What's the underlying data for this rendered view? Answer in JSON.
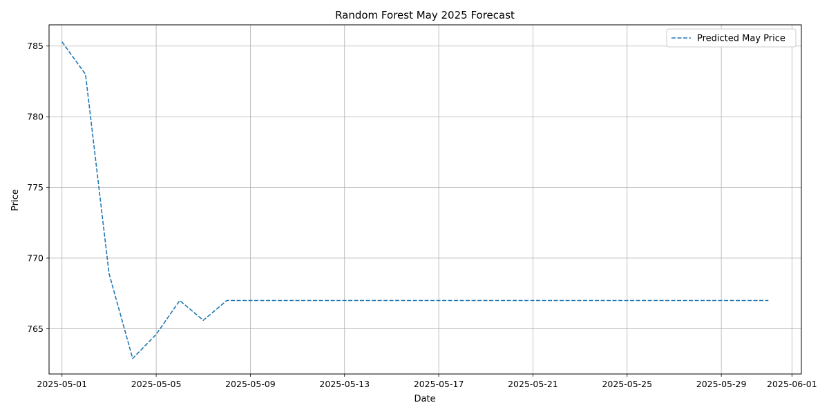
{
  "chart_data": {
    "type": "line",
    "title": "Random Forest May 2025 Forecast",
    "xlabel": "Date",
    "ylabel": "Price",
    "xlim": [
      "2025-04-30",
      "2025-06-01"
    ],
    "ylim": [
      761.8,
      786.5
    ],
    "x_ticks": [
      "2025-05-01",
      "2025-05-05",
      "2025-05-09",
      "2025-05-13",
      "2025-05-17",
      "2025-05-21",
      "2025-05-25",
      "2025-05-29",
      "2025-06-01"
    ],
    "y_ticks": [
      765,
      770,
      775,
      780,
      785
    ],
    "grid": true,
    "legend_position": "top-right",
    "series": [
      {
        "name": "Predicted May Price",
        "color": "#1f77b4",
        "line_style": "dashed",
        "x": [
          "2025-05-01",
          "2025-05-02",
          "2025-05-03",
          "2025-05-04",
          "2025-05-05",
          "2025-05-06",
          "2025-05-07",
          "2025-05-08",
          "2025-05-09",
          "2025-05-10",
          "2025-05-11",
          "2025-05-12",
          "2025-05-13",
          "2025-05-14",
          "2025-05-15",
          "2025-05-16",
          "2025-05-17",
          "2025-05-18",
          "2025-05-19",
          "2025-05-20",
          "2025-05-21",
          "2025-05-22",
          "2025-05-23",
          "2025-05-24",
          "2025-05-25",
          "2025-05-26",
          "2025-05-27",
          "2025-05-28",
          "2025-05-29",
          "2025-05-30",
          "2025-05-31"
        ],
        "y": [
          785.3,
          783.0,
          768.9,
          762.9,
          764.6,
          767.0,
          765.6,
          767.0,
          767.0,
          767.0,
          767.0,
          767.0,
          767.0,
          767.0,
          767.0,
          767.0,
          767.0,
          767.0,
          767.0,
          767.0,
          767.0,
          767.0,
          767.0,
          767.0,
          767.0,
          767.0,
          767.0,
          767.0,
          767.0,
          767.0,
          767.0
        ]
      }
    ]
  }
}
